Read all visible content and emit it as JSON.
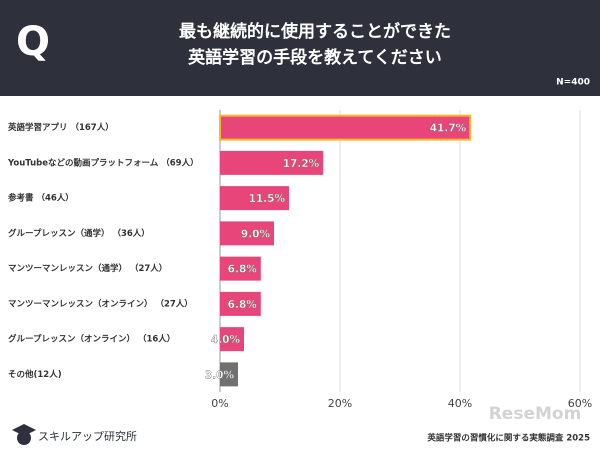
{
  "badge": "Q",
  "chart_data": {
    "type": "barh",
    "title": [
      "最も継続的に使用することができた",
      "英語学習の手段を教えてください"
    ],
    "sample_size": "N=400",
    "categories": [
      "英語学習アプリ （167人）",
      "YouTubeなどの動画プラットフォーム （69人）",
      "参考書 （46人）",
      "グループレッスン（通学） （36人）",
      "マンツーマンレッスン（通学） （27人）",
      "マンツーマンレッスン（オンライン） （27人）",
      "グループレッスン（オンライン） （16人）",
      "その他(12人)"
    ],
    "values": [
      41.7,
      17.2,
      11.5,
      9.0,
      6.8,
      6.8,
      4.0,
      3.0
    ],
    "value_labels": [
      "41.7%",
      "17.2%",
      "11.5%",
      "9.0%",
      "6.8%",
      "6.8%",
      "4.0%",
      "3.0%"
    ],
    "colors": [
      "#e8457a",
      "#e8457a",
      "#e8457a",
      "#e8457a",
      "#e8457a",
      "#e8457a",
      "#e8457a",
      "#707070"
    ],
    "highlight": {
      "index": 0,
      "color": "#f7b731"
    },
    "xlim": [
      0,
      60
    ],
    "xticks": [
      {
        "value": 0,
        "label": "0%"
      },
      {
        "value": 20,
        "label": "20%"
      },
      {
        "value": 40,
        "label": "40%"
      },
      {
        "value": 60,
        "label": "60%"
      }
    ],
    "grid": true
  },
  "footer": {
    "brand": "スキルアップ研究所",
    "source": "英語学習の習慣化に関する実態調査 2025",
    "watermark": "ReseMom"
  }
}
